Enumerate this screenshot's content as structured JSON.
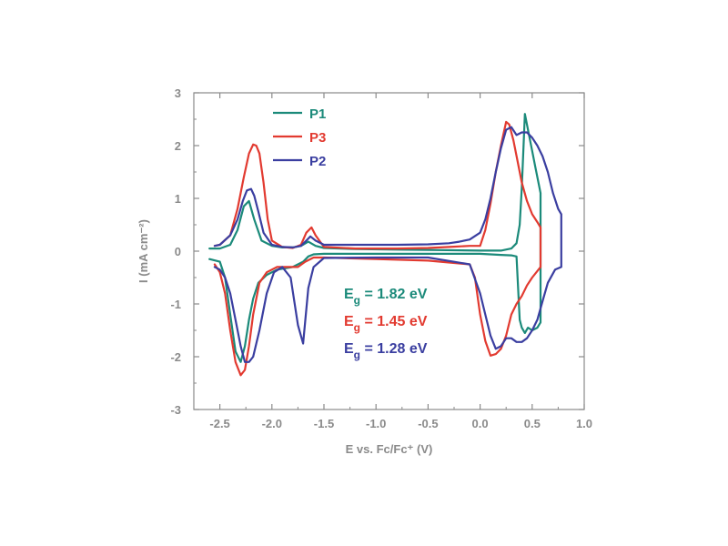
{
  "chart_data": {
    "type": "line",
    "xlabel": "E vs. Fc/Fc⁺ (V)",
    "ylabel": "I (mA cm⁻²)",
    "xlim": [
      -2.75,
      1.0
    ],
    "ylim": [
      -3,
      3
    ],
    "xticks": [
      "-2.5",
      "-2.0",
      "-1.5",
      "-1.0",
      "-0.5",
      "0.0",
      "0.5",
      "1.0"
    ],
    "yticks": [
      "3",
      "2",
      "1",
      "0",
      "-1",
      "-2",
      "-3"
    ],
    "legend_position": "top-left",
    "grid": false,
    "series": [
      {
        "name": "P1",
        "color": "#1b8a7a",
        "x": [
          -2.6,
          -2.5,
          -2.4,
          -2.33,
          -2.27,
          -2.22,
          -2.17,
          -2.1,
          -2.0,
          -1.9,
          -1.8,
          -1.72,
          -1.65,
          -1.58,
          -1.5,
          -1.2,
          -0.8,
          -0.4,
          0.0,
          0.2,
          0.3,
          0.35,
          0.38,
          0.4,
          0.43,
          0.46,
          0.5,
          0.53,
          0.56,
          0.58,
          0.58,
          0.55,
          0.5,
          0.46,
          0.43,
          0.4,
          0.38,
          0.35,
          0.3,
          0.2,
          0.0,
          -0.5,
          -1.0,
          -1.5,
          -1.6,
          -1.65,
          -1.7,
          -1.8,
          -1.95,
          -2.05,
          -2.13,
          -2.18,
          -2.22,
          -2.26,
          -2.3,
          -2.35,
          -2.4,
          -2.45,
          -2.5,
          -2.6
        ],
        "y": [
          0.05,
          0.05,
          0.12,
          0.4,
          0.85,
          0.95,
          0.6,
          0.2,
          0.1,
          0.07,
          0.07,
          0.1,
          0.18,
          0.1,
          0.06,
          0.04,
          0.03,
          0.02,
          0.01,
          0.01,
          0.05,
          0.15,
          0.5,
          1.2,
          2.6,
          2.3,
          1.9,
          1.6,
          1.3,
          1.1,
          -1.35,
          -1.45,
          -1.5,
          -1.45,
          -1.55,
          -1.45,
          -1.3,
          -0.1,
          -0.08,
          -0.07,
          -0.05,
          -0.05,
          -0.05,
          -0.05,
          -0.06,
          -0.1,
          -0.2,
          -0.3,
          -0.35,
          -0.45,
          -0.6,
          -0.9,
          -1.3,
          -1.8,
          -2.1,
          -1.9,
          -1.2,
          -0.5,
          -0.2,
          -0.15
        ]
      },
      {
        "name": "P3",
        "color": "#e23a30",
        "x": [
          -2.55,
          -2.5,
          -2.4,
          -2.33,
          -2.27,
          -2.22,
          -2.18,
          -2.15,
          -2.12,
          -2.08,
          -2.04,
          -2.0,
          -1.9,
          -1.8,
          -1.72,
          -1.67,
          -1.62,
          -1.58,
          -1.5,
          -1.2,
          -0.8,
          -0.5,
          -0.3,
          -0.1,
          0.0,
          0.05,
          0.1,
          0.15,
          0.2,
          0.25,
          0.28,
          0.32,
          0.36,
          0.4,
          0.45,
          0.5,
          0.55,
          0.58,
          0.58,
          0.5,
          0.45,
          0.4,
          0.35,
          0.3,
          0.25,
          0.2,
          0.15,
          0.1,
          0.05,
          0.0,
          -0.05,
          -0.1,
          -0.5,
          -1.0,
          -1.5,
          -1.6,
          -1.68,
          -1.75,
          -1.85,
          -1.95,
          -2.05,
          -2.12,
          -2.18,
          -2.22,
          -2.26,
          -2.3,
          -2.35,
          -2.4,
          -2.45,
          -2.5,
          -2.55
        ],
        "y": [
          0.1,
          0.12,
          0.3,
          0.8,
          1.4,
          1.85,
          2.02,
          2.0,
          1.85,
          1.3,
          0.6,
          0.2,
          0.08,
          0.06,
          0.12,
          0.35,
          0.45,
          0.3,
          0.08,
          0.05,
          0.05,
          0.06,
          0.08,
          0.1,
          0.1,
          0.4,
          0.9,
          1.5,
          2.0,
          2.45,
          2.4,
          2.1,
          1.7,
          1.3,
          0.95,
          0.7,
          0.55,
          0.45,
          -0.3,
          -0.5,
          -0.65,
          -0.85,
          -1.0,
          -1.2,
          -1.6,
          -1.85,
          -1.95,
          -1.98,
          -1.7,
          -1.2,
          -0.5,
          -0.25,
          -0.18,
          -0.15,
          -0.12,
          -0.12,
          -0.2,
          -0.3,
          -0.3,
          -0.3,
          -0.4,
          -0.6,
          -1.2,
          -1.8,
          -2.25,
          -2.35,
          -2.1,
          -1.5,
          -0.8,
          -0.4,
          -0.25
        ]
      },
      {
        "name": "P2",
        "color": "#3a3ea0",
        "x": [
          -2.55,
          -2.5,
          -2.4,
          -2.33,
          -2.28,
          -2.24,
          -2.2,
          -2.17,
          -2.13,
          -2.08,
          -2.0,
          -1.9,
          -1.8,
          -1.72,
          -1.67,
          -1.63,
          -1.58,
          -1.5,
          -1.2,
          -0.8,
          -0.5,
          -0.3,
          -0.2,
          -0.1,
          0.0,
          0.05,
          0.1,
          0.15,
          0.2,
          0.25,
          0.3,
          0.35,
          0.4,
          0.45,
          0.5,
          0.55,
          0.6,
          0.65,
          0.7,
          0.75,
          0.78,
          0.78,
          0.72,
          0.65,
          0.6,
          0.55,
          0.5,
          0.45,
          0.4,
          0.35,
          0.3,
          0.25,
          0.2,
          0.15,
          0.1,
          0.05,
          0.0,
          -0.1,
          -0.5,
          -1.0,
          -1.5,
          -1.6,
          -1.65,
          -1.7,
          -1.75,
          -1.82,
          -1.9,
          -1.98,
          -2.05,
          -2.12,
          -2.18,
          -2.22,
          -2.26,
          -2.3,
          -2.35,
          -2.4,
          -2.45,
          -2.5,
          -2.55
        ],
        "y": [
          0.1,
          0.12,
          0.3,
          0.6,
          0.95,
          1.15,
          1.18,
          1.05,
          0.75,
          0.35,
          0.12,
          0.08,
          0.07,
          0.1,
          0.2,
          0.28,
          0.2,
          0.12,
          0.12,
          0.12,
          0.13,
          0.15,
          0.18,
          0.22,
          0.35,
          0.6,
          1.0,
          1.5,
          1.95,
          2.3,
          2.35,
          2.2,
          2.25,
          2.25,
          2.15,
          2.0,
          1.8,
          1.5,
          1.1,
          0.8,
          0.7,
          -0.3,
          -0.35,
          -0.6,
          -0.95,
          -1.3,
          -1.5,
          -1.65,
          -1.72,
          -1.72,
          -1.65,
          -1.65,
          -1.8,
          -1.85,
          -1.6,
          -1.2,
          -0.8,
          -0.25,
          -0.12,
          -0.12,
          -0.13,
          -0.3,
          -0.7,
          -1.75,
          -1.4,
          -0.5,
          -0.3,
          -0.4,
          -0.8,
          -1.5,
          -2.0,
          -2.1,
          -2.1,
          -1.8,
          -1.3,
          -0.8,
          -0.5,
          -0.35,
          -0.3
        ]
      }
    ],
    "annotations": [
      {
        "text_main": "E",
        "text_sub": "g",
        "text_rest": " = 1.82 eV",
        "color": "#1b8a7a"
      },
      {
        "text_main": "E",
        "text_sub": "g",
        "text_rest": " = 1.45 eV",
        "color": "#e23a30"
      },
      {
        "text_main": "E",
        "text_sub": "g",
        "text_rest": " = 1.28 eV",
        "color": "#3a3ea0"
      }
    ],
    "axis_color": "#8a8a8a"
  }
}
